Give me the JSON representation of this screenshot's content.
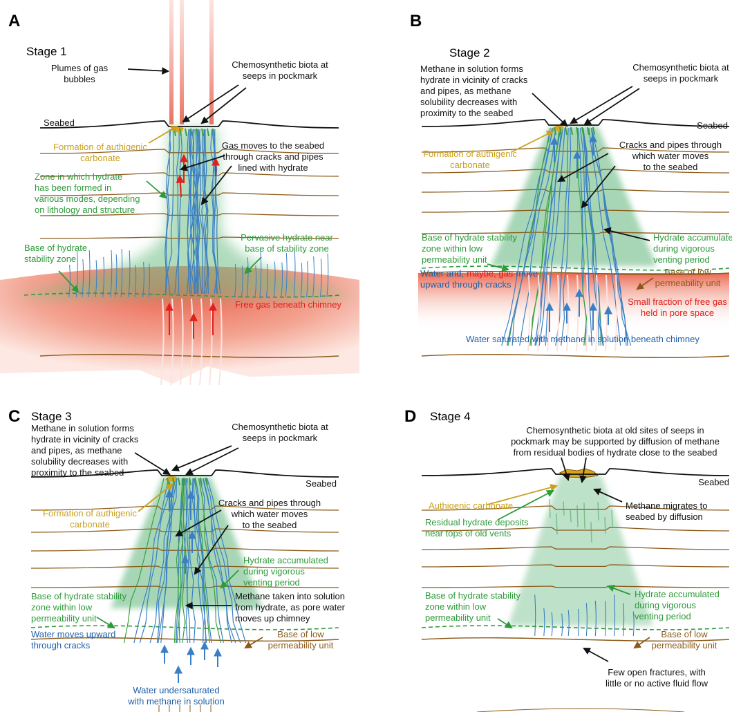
{
  "panels": [
    {
      "letter": "A",
      "stage": "Stage 1",
      "labels": [
        {
          "lines": [
            "Plumes of gas",
            "bubbles"
          ],
          "color": "#111111"
        },
        {
          "lines": [
            "Chemosynthetic biota at",
            "seeps in pockmark"
          ],
          "color": "#111111"
        },
        {
          "lines": [
            "Seabed"
          ],
          "color": "#111111"
        },
        {
          "lines": [
            "Formation of authigenic",
            "carbonate"
          ],
          "color": "#c9a020"
        },
        {
          "lines": [
            "Gas moves to the seabed",
            "through cracks and pipes",
            "lined with hydrate"
          ],
          "color": "#111111"
        },
        {
          "lines": [
            "Zone in which hydrate",
            "has been formed in",
            "various modes, depending",
            "on lithology and structure"
          ],
          "color": "#2e9a3a"
        },
        {
          "lines": [
            "Pervasive hydrate near",
            "base of stability zone"
          ],
          "color": "#2e9a3a"
        },
        {
          "lines": [
            "Base of hydrate",
            "stability zone"
          ],
          "color": "#2e9a3a"
        },
        {
          "lines": [
            "Free gas beneath chimney"
          ],
          "color": "#e0201c"
        }
      ]
    },
    {
      "letter": "B",
      "stage": "Stage 2",
      "labels": [
        {
          "lines": [
            "Methane in solution forms",
            "hydrate in vicinity of cracks",
            "and pipes, as methane",
            "solubility decreases with",
            "proximity to the seabed"
          ],
          "color": "#111111"
        },
        {
          "lines": [
            "Chemosynthetic biota at",
            "seeps in pockmark"
          ],
          "color": "#111111"
        },
        {
          "lines": [
            "Seabed"
          ],
          "color": "#111111"
        },
        {
          "lines": [
            "Formation of authigenic",
            "carbonate"
          ],
          "color": "#c9a020"
        },
        {
          "lines": [
            "Cracks and pipes through",
            "which water moves",
            "to the seabed"
          ],
          "color": "#111111"
        },
        {
          "lines": [
            "Base of hydrate stability",
            "zone within low",
            "permeability unit"
          ],
          "color": "#2e9a3a"
        },
        {
          "lines": [
            "Hydrate accumulated",
            "during vigorous",
            "venting period"
          ],
          "color": "#2e9a3a"
        },
        {
          "lines": [
            [
              "Water and,",
              "maybe, gas",
              "move"
            ],
            "upward through cracks"
          ],
          "color": "#1f5fa8"
        },
        {
          "lines": [
            "Base of low",
            "permeability unit"
          ],
          "color": "#8b5a1a"
        },
        {
          "lines": [
            "Small fraction of free gas",
            "held in pore space"
          ],
          "color": "#e0201c"
        },
        {
          "lines": [
            "Water saturated with methane in solution beneath chimney"
          ],
          "color": "#1f5fa8"
        }
      ]
    },
    {
      "letter": "C",
      "stage": "Stage 3",
      "labels": [
        {
          "lines": [
            "Methane in solution forms",
            "hydrate in vicinity of cracks",
            "and pipes, as methane",
            "solubility decreases with",
            "proximity to the seabed"
          ],
          "color": "#111111"
        },
        {
          "lines": [
            "Chemosynthetic biota at",
            "seeps in pockmark"
          ],
          "color": "#111111"
        },
        {
          "lines": [
            "Seabed"
          ],
          "color": "#111111"
        },
        {
          "lines": [
            "Formation of authigenic",
            "carbonate"
          ],
          "color": "#c9a020"
        },
        {
          "lines": [
            "Cracks and pipes through",
            "which water moves",
            "to the seabed"
          ],
          "color": "#111111"
        },
        {
          "lines": [
            "Hydrate accumulated",
            "during vigorous",
            "venting period"
          ],
          "color": "#2e9a3a"
        },
        {
          "lines": [
            "Methane taken into solution",
            "from hydrate, as pore water",
            "moves up chimney"
          ],
          "color": "#111111"
        },
        {
          "lines": [
            "Base of hydrate stability",
            "zone within low",
            "permeability unit"
          ],
          "color": "#2e9a3a"
        },
        {
          "lines": [
            "Water moves upward",
            "through cracks"
          ],
          "color": "#1f5fa8"
        },
        {
          "lines": [
            "Base of low",
            "permeability unit"
          ],
          "color": "#8b5a1a"
        },
        {
          "lines": [
            "Water undersaturated",
            "with methane in solution"
          ],
          "color": "#1f5fa8"
        }
      ]
    },
    {
      "letter": "D",
      "stage": "Stage 4",
      "labels": [
        {
          "lines": [
            "Chemosynthetic biota at old sites of seeps in",
            "pockmark may be supported by diffusion of methane",
            "from residual bodies of hydrate close to the seabed"
          ],
          "color": "#111111"
        },
        {
          "lines": [
            "Seabed"
          ],
          "color": "#111111"
        },
        {
          "lines": [
            "Authigenic carbonate"
          ],
          "color": "#c9a020"
        },
        {
          "lines": [
            "Methane migrates to",
            "seabed by diffusion"
          ],
          "color": "#111111"
        },
        {
          "lines": [
            "Residual hydrate deposits",
            "near tops of old vents"
          ],
          "color": "#2e9a3a"
        },
        {
          "lines": [
            "Base of hydrate stability",
            "zone within low",
            "permeability unit"
          ],
          "color": "#2e9a3a"
        },
        {
          "lines": [
            "Hydrate accumulated",
            "during vigorous",
            "venting period"
          ],
          "color": "#2e9a3a"
        },
        {
          "lines": [
            "Base of low",
            "permeability unit"
          ],
          "color": "#8b5a1a"
        },
        {
          "lines": [
            "Few open fractures, with",
            "little or no active fluid flow"
          ],
          "color": "#111111"
        }
      ]
    }
  ]
}
